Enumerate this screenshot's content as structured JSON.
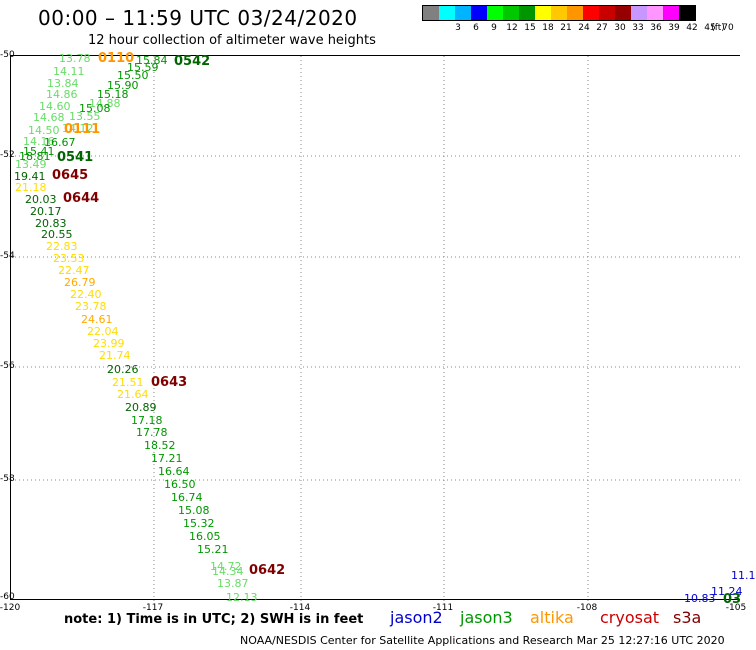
{
  "header": {
    "title": "00:00 – 11:59 UTC 03/24/2020",
    "subtitle": "12 hour collection of altimeter wave heights"
  },
  "legend": {
    "swatches": [
      {
        "color": "#808080",
        "label": ""
      },
      {
        "color": "#00ffff",
        "label": "3"
      },
      {
        "color": "#00b4ff",
        "label": "6"
      },
      {
        "color": "#0000ff",
        "label": "9"
      },
      {
        "color": "#00ff00",
        "label": "12"
      },
      {
        "color": "#00c800",
        "label": "15"
      },
      {
        "color": "#009600",
        "label": "18"
      },
      {
        "color": "#ffff00",
        "label": "21"
      },
      {
        "color": "#ffc800",
        "label": "24"
      },
      {
        "color": "#ff9600",
        "label": "27"
      },
      {
        "color": "#ff0000",
        "label": "30"
      },
      {
        "color": "#c80000",
        "label": "33"
      },
      {
        "color": "#960000",
        "label": "36"
      },
      {
        "color": "#c896ff",
        "label": "39"
      },
      {
        "color": "#ff96ff",
        "label": "42"
      },
      {
        "color": "#ff00ff",
        "label": "45"
      },
      {
        "color": "#000000",
        "label": "70"
      }
    ],
    "unit": "(ft)"
  },
  "axes": {
    "y_ticks": [
      "-50",
      "-52",
      "-54",
      "-56",
      "-58",
      "-60"
    ],
    "x_ticks": [
      "-120",
      "-117",
      "-114",
      "-111",
      "-108",
      "-105"
    ]
  },
  "passes": [
    {
      "id": "0110",
      "color": "#ff9600"
    },
    {
      "id": "0542",
      "color": "#006400"
    },
    {
      "id": "0111",
      "color": "#ff9600"
    },
    {
      "id": "0541",
      "color": "#006400"
    },
    {
      "id": "0645",
      "color": "#800000"
    },
    {
      "id": "0644",
      "color": "#800000"
    },
    {
      "id": "0643",
      "color": "#800000"
    },
    {
      "id": "0642",
      "color": "#800000"
    },
    {
      "id": "03",
      "color": "#006400"
    }
  ],
  "wave_labels": [
    {
      "v": "13.78",
      "c": "#66dd66"
    },
    {
      "v": "15.84",
      "c": "#009600"
    },
    {
      "v": "15.59",
      "c": "#009600"
    },
    {
      "v": "14.11",
      "c": "#66dd66"
    },
    {
      "v": "15.50",
      "c": "#009600"
    },
    {
      "v": "13.84",
      "c": "#66dd66"
    },
    {
      "v": "15.90",
      "c": "#009600"
    },
    {
      "v": "14.86",
      "c": "#66dd66"
    },
    {
      "v": "15.18",
      "c": "#009600"
    },
    {
      "v": "14.60",
      "c": "#66dd66"
    },
    {
      "v": "14.88",
      "c": "#66dd66"
    },
    {
      "v": "15.08",
      "c": "#009600"
    },
    {
      "v": "14.68",
      "c": "#66dd66"
    },
    {
      "v": "13.55",
      "c": "#66dd66"
    },
    {
      "v": "14.50",
      "c": "#66dd66"
    },
    {
      "v": "14.12",
      "c": "#66dd66"
    },
    {
      "v": "14.16",
      "c": "#66dd66"
    },
    {
      "v": "16.67",
      "c": "#009600"
    },
    {
      "v": "15.41",
      "c": "#009600"
    },
    {
      "v": "18.81",
      "c": "#009600"
    },
    {
      "v": "13.49",
      "c": "#66dd66"
    },
    {
      "v": "19.41",
      "c": "#006400"
    },
    {
      "v": "21.18",
      "c": "#ffdd00"
    },
    {
      "v": "20.03",
      "c": "#006400"
    },
    {
      "v": "20.17",
      "c": "#006400"
    },
    {
      "v": "20.83",
      "c": "#006400"
    },
    {
      "v": "20.55",
      "c": "#006400"
    },
    {
      "v": "22.83",
      "c": "#ffdd00"
    },
    {
      "v": "23.53",
      "c": "#ffdd00"
    },
    {
      "v": "22.47",
      "c": "#ffdd00"
    },
    {
      "v": "26.79",
      "c": "#ffaa00"
    },
    {
      "v": "22.40",
      "c": "#ffdd00"
    },
    {
      "v": "23.78",
      "c": "#ffdd00"
    },
    {
      "v": "24.61",
      "c": "#ffaa00"
    },
    {
      "v": "22.04",
      "c": "#ffdd00"
    },
    {
      "v": "23.99",
      "c": "#ffdd00"
    },
    {
      "v": "21.74",
      "c": "#ffdd00"
    },
    {
      "v": "20.26",
      "c": "#006400"
    },
    {
      "v": "21.51",
      "c": "#ffdd00"
    },
    {
      "v": "21.64",
      "c": "#ffdd00"
    },
    {
      "v": "20.89",
      "c": "#006400"
    },
    {
      "v": "17.18",
      "c": "#009600"
    },
    {
      "v": "17.78",
      "c": "#009600"
    },
    {
      "v": "18.52",
      "c": "#009600"
    },
    {
      "v": "17.21",
      "c": "#009600"
    },
    {
      "v": "16.64",
      "c": "#009600"
    },
    {
      "v": "16.50",
      "c": "#009600"
    },
    {
      "v": "16.74",
      "c": "#009600"
    },
    {
      "v": "15.08",
      "c": "#009600"
    },
    {
      "v": "15.32",
      "c": "#009600"
    },
    {
      "v": "16.05",
      "c": "#009600"
    },
    {
      "v": "15.21",
      "c": "#009600"
    },
    {
      "v": "14.72",
      "c": "#66dd66"
    },
    {
      "v": "14.34",
      "c": "#66dd66"
    },
    {
      "v": "13.87",
      "c": "#66dd66"
    },
    {
      "v": "12.13",
      "c": "#66dd66"
    },
    {
      "v": "11.1",
      "c": "#0000cc"
    },
    {
      "v": "11.24",
      "c": "#0000cc"
    },
    {
      "v": "10.83",
      "c": "#0000cc"
    }
  ],
  "footer": {
    "note": "note: 1) Time is in UTC; 2) SWH is in feet",
    "credit": "NOAA/NESDIS Center for Satellite Applications and Research    Mar 25 12:27:16 UTC 2020",
    "satellites": [
      {
        "name": "jason2",
        "color": "#0000cc"
      },
      {
        "name": "jason3",
        "color": "#009600"
      },
      {
        "name": "altika",
        "color": "#ff9600"
      },
      {
        "name": "cryosat",
        "color": "#cc0000"
      },
      {
        "name": "s3a",
        "color": "#800000"
      }
    ]
  }
}
